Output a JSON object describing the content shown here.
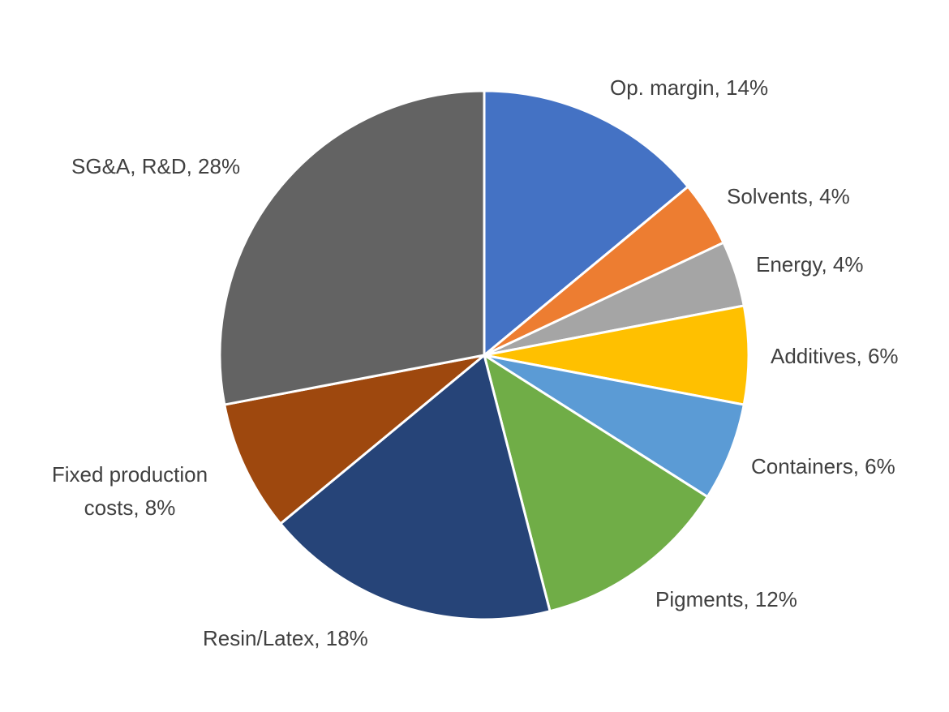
{
  "chart_data": {
    "type": "pie",
    "title": "",
    "start_angle_deg": 0,
    "direction": "clockwise",
    "slices": [
      {
        "label": "Op. margin",
        "value": 14,
        "display": "Op. margin, 14%",
        "color": "#4472C4"
      },
      {
        "label": "Solvents",
        "value": 4,
        "display": "Solvents, 4%",
        "color": "#ED7D31"
      },
      {
        "label": "Energy",
        "value": 4,
        "display": "Energy, 4%",
        "color": "#A5A5A5"
      },
      {
        "label": "Additives",
        "value": 6,
        "display": "Additives, 6%",
        "color": "#FFC000"
      },
      {
        "label": "Containers",
        "value": 6,
        "display": "Containers, 6%",
        "color": "#5B9BD5"
      },
      {
        "label": "Pigments",
        "value": 12,
        "display": "Pigments, 12%",
        "color": "#70AD47"
      },
      {
        "label": "Resin/Latex",
        "value": 18,
        "display": "Resin/Latex, 18%",
        "color": "#264478"
      },
      {
        "label": "Fixed production costs",
        "value": 8,
        "display": "Fixed production costs, 8%",
        "color": "#9E480E"
      },
      {
        "label": "SG&A, R&D",
        "value": 28,
        "display": "SG&A, R&D, 28%",
        "color": "#636363"
      }
    ]
  }
}
